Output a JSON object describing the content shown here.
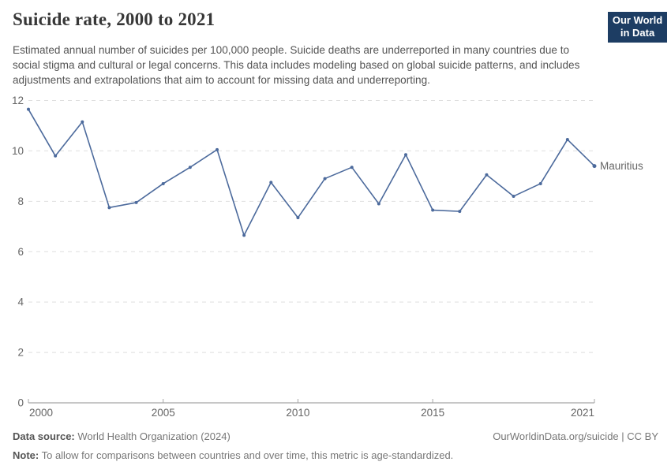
{
  "header": {
    "title": "Suicide rate, 2000 to 2021",
    "subtitle": "Estimated annual number of suicides per 100,000 people. Suicide deaths are underreported in many countries due to social stigma and cultural or legal concerns. This data includes modeling based on global suicide patterns, and includes adjustments and extrapolations that aim to account for missing data and underreporting.",
    "logo": {
      "line1": "Our World",
      "line2": "in Data",
      "bg_color": "#1d3d63",
      "accent_color": "#d7352b"
    }
  },
  "chart_data": {
    "type": "line",
    "title": "Suicide rate, 2000 to 2021",
    "xlabel": "",
    "ylabel": "",
    "x": [
      2000,
      2001,
      2002,
      2003,
      2004,
      2005,
      2006,
      2007,
      2008,
      2009,
      2010,
      2011,
      2012,
      2013,
      2014,
      2015,
      2016,
      2017,
      2018,
      2019,
      2020,
      2021
    ],
    "series": [
      {
        "name": "Mauritius",
        "color": "#4c6a9c",
        "values": [
          11.65,
          9.8,
          11.15,
          7.75,
          7.95,
          8.7,
          9.35,
          10.05,
          6.65,
          8.75,
          7.35,
          8.9,
          9.35,
          7.9,
          9.85,
          7.65,
          7.6,
          9.05,
          8.2,
          8.7,
          10.45,
          9.4
        ]
      }
    ],
    "ylim": [
      0,
      12
    ],
    "yticks": [
      0,
      2,
      4,
      6,
      8,
      10,
      12
    ],
    "xticks": [
      2000,
      2005,
      2010,
      2015,
      2021
    ],
    "grid": "horizontal-dashed",
    "legend_position": "end-of-line-label",
    "colors": {
      "gridline": "#dedede",
      "axis_line": "#8f8f8f",
      "tick_mark": "#a5a5a5",
      "tick_label": "#666666"
    }
  },
  "footer": {
    "datasource_label": "Data source:",
    "datasource_value": " World Health Organization (2024)",
    "note_label": "Note:",
    "note_value": " To allow for comparisons between countries and over time, this metric is age-standardized.",
    "link": "OurWorldinData.org/suicide | CC BY"
  }
}
